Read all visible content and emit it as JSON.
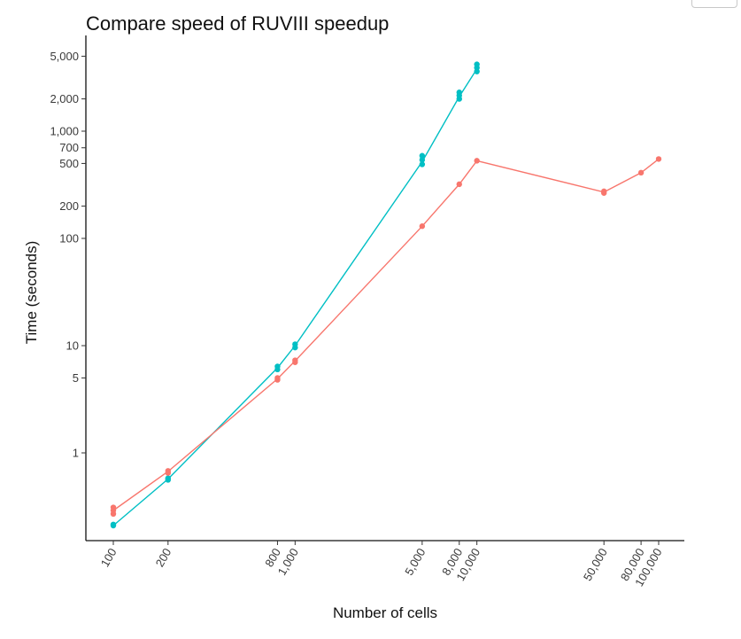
{
  "chart_data": {
    "type": "line",
    "title": "Compare speed of RUVIII speedup",
    "xlabel": "Number of cells",
    "ylabel": "Time (seconds)",
    "x_scale": "log",
    "y_scale": "log",
    "xlim": [
      85,
      120000
    ],
    "ylim": [
      0.1,
      8000
    ],
    "x_ticks": [
      100,
      200,
      800,
      1000,
      5000,
      8000,
      10000,
      50000,
      80000,
      100000
    ],
    "x_tick_labels": [
      "100",
      "200",
      "800",
      "1,000",
      "5,000",
      "8,000",
      "10,000",
      "50,000",
      "80,000",
      "100,000"
    ],
    "y_ticks": [
      1,
      5,
      10,
      100,
      200,
      500,
      700,
      1000,
      2000,
      5000
    ],
    "y_tick_labels": [
      "1",
      "5",
      "10",
      "100",
      "200",
      "500",
      "700",
      "1,000",
      "2,000",
      "5,000"
    ],
    "grid": false,
    "legend": "none",
    "series": [
      {
        "color": "#00BFC4",
        "x": [
          100,
          200,
          800,
          1000,
          5000,
          8000,
          10000
        ],
        "y": [
          0.21,
          0.57,
          6.2,
          10,
          520,
          2100,
          3800
        ],
        "points": [
          [
            100,
            0.21
          ],
          [
            100,
            0.215
          ],
          [
            200,
            0.56
          ],
          [
            200,
            0.58
          ],
          [
            800,
            6.0
          ],
          [
            800,
            6.4
          ],
          [
            1000,
            9.6
          ],
          [
            1000,
            10.3
          ],
          [
            5000,
            490
          ],
          [
            5000,
            540
          ],
          [
            5000,
            590
          ],
          [
            8000,
            2000
          ],
          [
            8000,
            2150
          ],
          [
            8000,
            2300
          ],
          [
            10000,
            3600
          ],
          [
            10000,
            3900
          ],
          [
            10000,
            4200
          ]
        ]
      },
      {
        "color": "#F8766D",
        "x": [
          100,
          200,
          800,
          1000,
          5000,
          8000,
          10000,
          50000,
          80000,
          100000
        ],
        "y": [
          0.29,
          0.67,
          4.9,
          7.2,
          130,
          320,
          530,
          270,
          410,
          550
        ],
        "points": [
          [
            100,
            0.27
          ],
          [
            100,
            0.29
          ],
          [
            100,
            0.31
          ],
          [
            200,
            0.65
          ],
          [
            200,
            0.68
          ],
          [
            800,
            4.8
          ],
          [
            800,
            5.0
          ],
          [
            1000,
            7.0
          ],
          [
            1000,
            7.3
          ],
          [
            5000,
            130
          ],
          [
            8000,
            320
          ],
          [
            10000,
            530
          ],
          [
            50000,
            265
          ],
          [
            50000,
            275
          ],
          [
            80000,
            410
          ],
          [
            100000,
            550
          ]
        ]
      }
    ]
  }
}
